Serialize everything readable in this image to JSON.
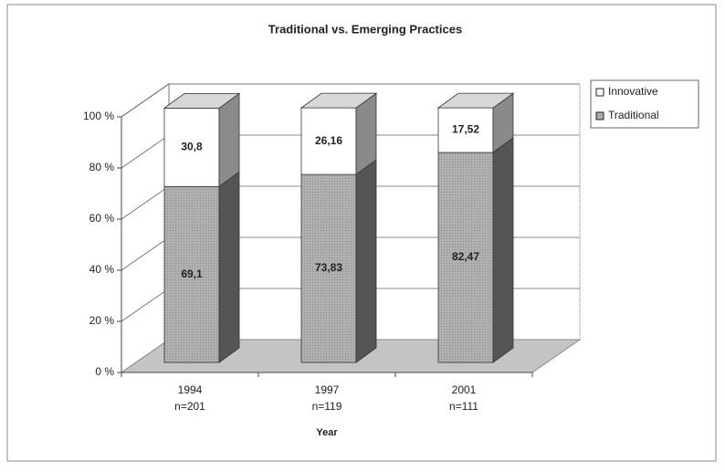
{
  "chart_data": {
    "type": "bar3d_stacked",
    "title": "Traditional vs. Emerging Practices",
    "x_label": "Year",
    "categories": [
      "1994",
      "1997",
      "2001"
    ],
    "sample_sizes": [
      "n=201",
      "n=119",
      "n=111"
    ],
    "series": [
      {
        "name": "Traditional",
        "color": "#a9a9a9",
        "values": [
          69.1,
          73.83,
          82.47
        ],
        "value_labels": [
          "69,1",
          "73,83",
          "82,47"
        ]
      },
      {
        "name": "Innovative",
        "color": "#ffffff",
        "values": [
          30.8,
          26.16,
          17.52
        ],
        "value_labels": [
          "30,8",
          "26,16",
          "17,52"
        ]
      }
    ],
    "legend_order": [
      1,
      0
    ],
    "legend_position": "right",
    "ylim": [
      0,
      100
    ],
    "yticks": [
      {
        "value": 0,
        "label": "0 %"
      },
      {
        "value": 20,
        "label": "20 %"
      },
      {
        "value": 40,
        "label": "40 %"
      },
      {
        "value": 60,
        "label": "60 %"
      },
      {
        "value": 80,
        "label": "80 %"
      },
      {
        "value": 100,
        "label": "100 %"
      }
    ],
    "grid": true
  }
}
